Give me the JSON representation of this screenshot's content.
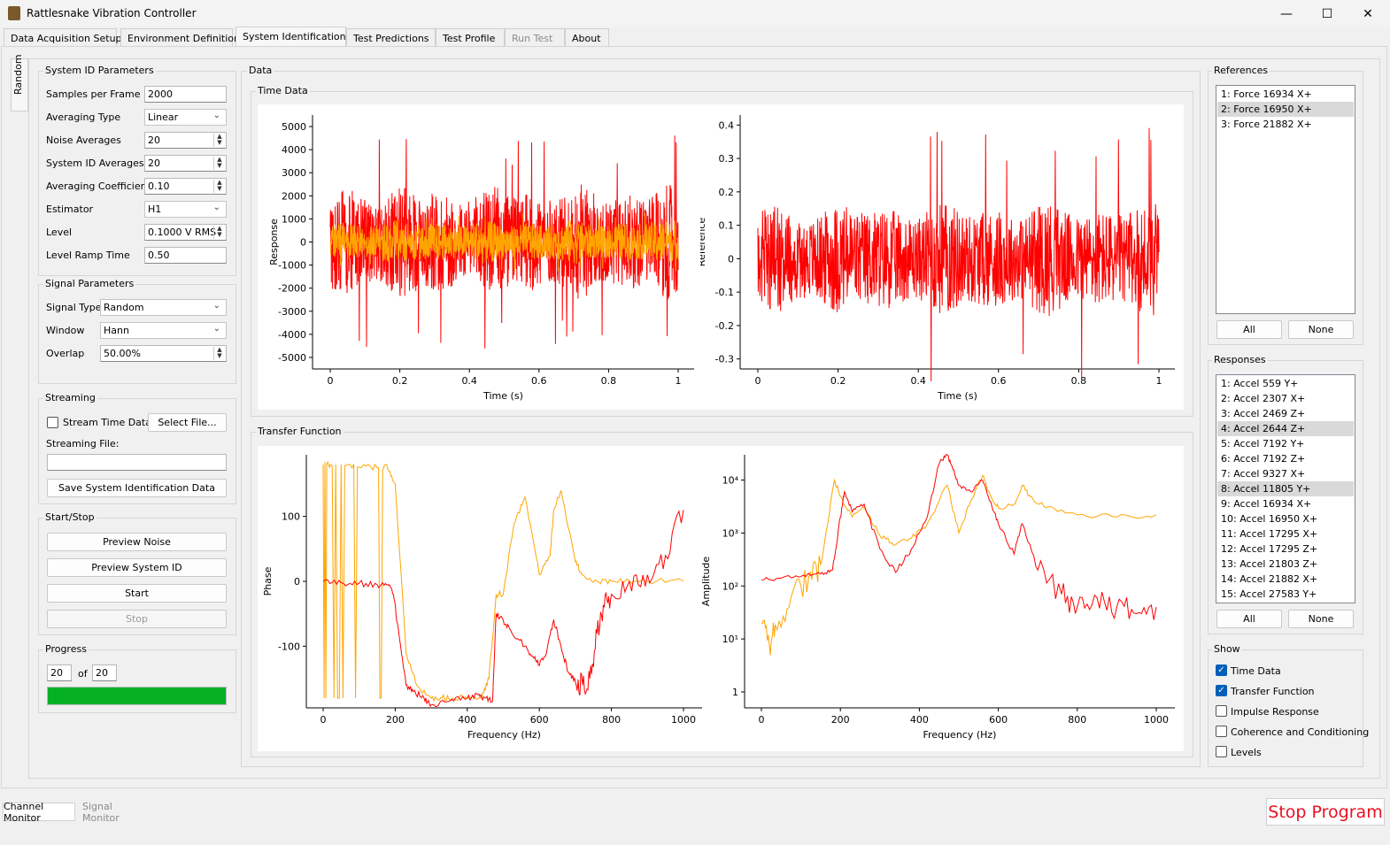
{
  "window": {
    "title": "Rattlesnake Vibration Controller",
    "controls": [
      "—",
      "☐",
      "✕"
    ]
  },
  "tabs": [
    {
      "label": "Data Acquisition Setup",
      "active": false,
      "disabled": false
    },
    {
      "label": "Environment Definition",
      "active": false,
      "disabled": false
    },
    {
      "label": "System Identification",
      "active": true,
      "disabled": false
    },
    {
      "label": "Test Predictions",
      "active": false,
      "disabled": false
    },
    {
      "label": "Test Profile",
      "active": false,
      "disabled": false
    },
    {
      "label": "Run Test",
      "active": false,
      "disabled": true
    },
    {
      "label": "About",
      "active": false,
      "disabled": false
    }
  ],
  "side_tab": "Random",
  "sysid": {
    "title": "System ID Parameters",
    "samples_label": "Samples per Frame",
    "samples_value": "2000",
    "avg_type_label": "Averaging Type",
    "avg_type_value": "Linear",
    "noise_avg_label": "Noise Averages",
    "noise_avg_value": "20",
    "sysid_avg_label": "System ID Averages",
    "sysid_avg_value": "20",
    "avg_coef_label": "Averaging Coefficient",
    "avg_coef_value": "0.10",
    "estimator_label": "Estimator",
    "estimator_value": "H1",
    "level_label": "Level",
    "level_value": "0.1000 V RMS",
    "ramp_label": "Level Ramp Time",
    "ramp_value": "0.50"
  },
  "signal": {
    "title": "Signal Parameters",
    "type_label": "Signal Type",
    "type_value": "Random",
    "window_label": "Window",
    "window_value": "Hann",
    "overlap_label": "Overlap",
    "overlap_value": "50.00%"
  },
  "streaming": {
    "title": "Streaming",
    "stream_cb_label": "Stream Time Data",
    "select_file_label": "Select File...",
    "file_label": "Streaming File:",
    "file_value": "",
    "save_label": "Save System Identification Data"
  },
  "startstop": {
    "title": "Start/Stop",
    "preview_noise": "Preview Noise",
    "preview_sysid": "Preview System ID",
    "start": "Start",
    "stop": "Stop"
  },
  "progress": {
    "title": "Progress",
    "current": "20",
    "of_label": "of",
    "total": "20",
    "fraction": 1.0,
    "bar_color": "#06b025"
  },
  "data_title": "Data",
  "time_data": {
    "title": "Time Data"
  },
  "transfer": {
    "title": "Transfer Function"
  },
  "references": {
    "title": "References",
    "items": [
      "1: Force 16934 X+",
      "2: Force 16950 X+",
      "3: Force 21882 X+"
    ],
    "selected": [
      1
    ],
    "all_label": "All",
    "none_label": "None"
  },
  "responses": {
    "title": "Responses",
    "items": [
      "1: Accel 559 Y+",
      "2: Accel 2307 X+",
      "3: Accel 2469 Z+",
      "4: Accel 2644 Z+",
      "5: Accel 7192 Y+",
      "6: Accel 7192 Z+",
      "7: Accel 9327 X+",
      "8: Accel 11805 Y+",
      "9: Accel 16934 X+",
      "10: Accel 16950 X+",
      "11: Accel 17295 X+",
      "12: Accel 17295 Z+",
      "13: Accel 21803 Z+",
      "14: Accel 21882 X+",
      "15: Accel 27583 Y+"
    ],
    "selected": [
      3,
      7
    ],
    "all_label": "All",
    "none_label": "None"
  },
  "show": {
    "title": "Show",
    "items": [
      {
        "label": "Time Data",
        "checked": true
      },
      {
        "label": "Transfer Function",
        "checked": true
      },
      {
        "label": "Impulse Response",
        "checked": false
      },
      {
        "label": "Coherence and Conditioning",
        "checked": false
      },
      {
        "label": "Levels",
        "checked": false
      }
    ]
  },
  "bottom": {
    "channel_monitor": "Channel Monitor",
    "signal_monitor": "Signal Monitor",
    "stop_program": "Stop Program"
  },
  "colors": {
    "series_a": "#ff0000",
    "series_b": "#ffa500",
    "progress": "#06b025",
    "stop": "#e81123"
  },
  "chart_data": [
    {
      "type": "line",
      "title": "",
      "xlabel": "Time (s)",
      "ylabel": "Response",
      "xlim": [
        0,
        1
      ],
      "ylim": [
        -5500,
        5500
      ],
      "xticks": [
        "0",
        "0.2",
        "0.4",
        "0.6",
        "0.8",
        "1"
      ],
      "yticks": [
        "5000",
        "4000",
        "3000",
        "2000",
        "1000",
        "0",
        "-1000",
        "-2000",
        "-3000",
        "-4000",
        "-5000"
      ],
      "series": [
        {
          "color": "#ff0000",
          "amplitude_rms": 1300,
          "peak": 4700
        },
        {
          "color": "#ffa500",
          "amplitude_rms": 500,
          "peak": 1300
        }
      ]
    },
    {
      "type": "line",
      "title": "",
      "xlabel": "Time (s)",
      "ylabel": "Reference",
      "xlim": [
        0,
        1
      ],
      "ylim": [
        -0.33,
        0.43
      ],
      "xticks": [
        "0",
        "0.2",
        "0.4",
        "0.6",
        "0.8",
        "1"
      ],
      "yticks": [
        "0.4",
        "0.3",
        "0.2",
        "0.1",
        "0",
        "-0.1",
        "-0.2",
        "-0.3"
      ],
      "series": [
        {
          "color": "#ff0000",
          "amplitude_rms": 0.09,
          "peak": 0.4
        }
      ]
    },
    {
      "type": "line",
      "title": "",
      "xlabel": "Frequency (Hz)",
      "ylabel": "Phase",
      "xlim": [
        0,
        1000
      ],
      "ylim": [
        -195,
        195
      ],
      "xticks": [
        "0",
        "200",
        "400",
        "600",
        "800",
        "1000"
      ],
      "yticks": [
        "100",
        "0",
        "-100"
      ],
      "series": [
        {
          "color": "#ffa500",
          "x": [
            0,
            20,
            60,
            100,
            150,
            180,
            200,
            230,
            260,
            300,
            330,
            360,
            400,
            440,
            460,
            480,
            500,
            530,
            560,
            600,
            630,
            640,
            660,
            700,
            720,
            760,
            800,
            850,
            900,
            1000
          ],
          "y": [
            180,
            180,
            178,
            176,
            175,
            172,
            150,
            -110,
            -160,
            -180,
            -180,
            -180,
            -180,
            -180,
            -150,
            -20,
            -20,
            90,
            130,
            10,
            40,
            110,
            140,
            30,
            10,
            0,
            0,
            0,
            0,
            0
          ]
        },
        {
          "color": "#ff0000",
          "x": [
            0,
            50,
            100,
            150,
            180,
            195,
            210,
            230,
            250,
            280,
            300,
            350,
            400,
            430,
            450,
            470,
            480,
            500,
            520,
            560,
            580,
            600,
            620,
            640,
            660,
            680,
            700,
            720,
            740,
            760,
            780,
            800,
            850,
            900,
            950,
            1000
          ],
          "y": [
            0,
            -2,
            -3,
            -5,
            -5,
            -20,
            -80,
            -160,
            -170,
            -180,
            -190,
            -185,
            -180,
            -175,
            -180,
            -185,
            -50,
            -60,
            -75,
            -100,
            -115,
            -130,
            -110,
            -60,
            -100,
            -140,
            -155,
            -160,
            -150,
            -80,
            -40,
            -20,
            0,
            10,
            40,
            110
          ]
        }
      ]
    },
    {
      "type": "line",
      "title": "",
      "xlabel": "Frequency (Hz)",
      "ylabel": "Amplitude",
      "xlim": [
        0,
        1000
      ],
      "log_y": true,
      "ylim": [
        0.5,
        30000
      ],
      "xticks": [
        "0",
        "200",
        "400",
        "600",
        "800",
        "1000"
      ],
      "yticks": [
        "10⁴",
        "10³",
        "10²",
        "10¹",
        "1"
      ],
      "series": [
        {
          "color": "#ffa500",
          "x": [
            0,
            20,
            40,
            80,
            120,
            150,
            185,
            200,
            230,
            260,
            300,
            340,
            380,
            420,
            470,
            500,
            530,
            560,
            580,
            600,
            640,
            660,
            680,
            720,
            800,
            900,
            1000
          ],
          "y": [
            20,
            8,
            15,
            80,
            150,
            250,
            10000,
            5000,
            2000,
            3000,
            900,
            600,
            800,
            1500,
            8000,
            1000,
            4000,
            12000,
            5000,
            3000,
            3500,
            8000,
            5000,
            3000,
            2200,
            2000,
            2200
          ]
        },
        {
          "color": "#ff0000",
          "x": [
            0,
            50,
            100,
            150,
            180,
            200,
            210,
            230,
            260,
            300,
            340,
            380,
            420,
            450,
            470,
            480,
            500,
            530,
            560,
            580,
            600,
            640,
            660,
            700,
            760,
            800,
            850,
            900,
            950,
            1000
          ],
          "y": [
            130,
            140,
            150,
            170,
            200,
            2000,
            6000,
            2500,
            3500,
            500,
            180,
            500,
            2000,
            20000,
            30000,
            20000,
            8000,
            6000,
            10000,
            4000,
            1500,
            400,
            1500,
            200,
            70,
            40,
            60,
            40,
            30,
            40
          ]
        }
      ]
    }
  ]
}
